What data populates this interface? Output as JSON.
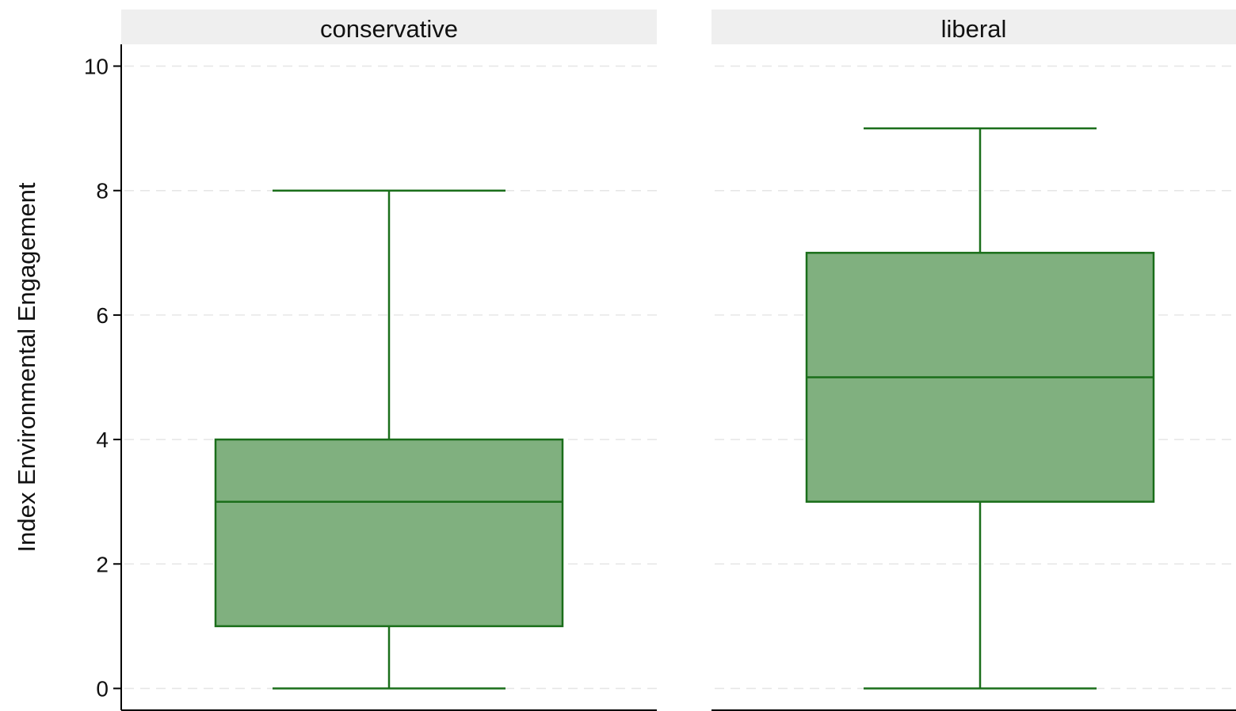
{
  "chart_data": {
    "type": "box",
    "ylabel": "Index Environmental Engagement",
    "ylim": [
      -0.35,
      10.35
    ],
    "yticks": [
      0,
      2,
      4,
      6,
      8,
      10
    ],
    "grid": "horizontal-dashed",
    "panels": [
      {
        "label": "conservative",
        "min": 0,
        "q1": 1,
        "median": 3,
        "q3": 4,
        "max": 8
      },
      {
        "label": "liberal",
        "min": 0,
        "q1": 3,
        "median": 5,
        "q3": 7,
        "max": 9
      }
    ],
    "colors": {
      "box_fill": "#80b07f",
      "box_stroke": "#1a6e1a",
      "strip_bg": "#efefef"
    }
  }
}
